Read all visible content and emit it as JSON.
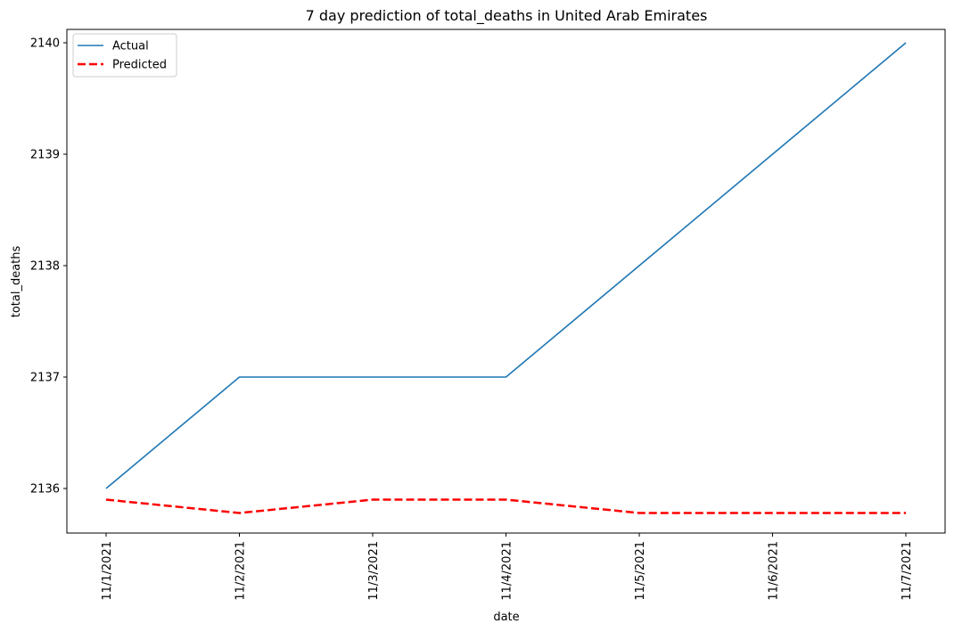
{
  "chart_data": {
    "type": "line",
    "title": "7 day prediction of total_deaths in United Arab Emirates",
    "xlabel": "date",
    "ylabel": "total_deaths",
    "categories": [
      "11/1/2021",
      "11/2/2021",
      "11/3/2021",
      "11/4/2021",
      "11/5/2021",
      "11/6/2021",
      "11/7/2021"
    ],
    "series": [
      {
        "name": "Actual",
        "color": "#1f77b4",
        "style": "solid",
        "values": [
          2136,
          2137,
          2137,
          2137,
          2138,
          2139,
          2140
        ]
      },
      {
        "name": "Predicted",
        "color": "#ff0000",
        "style": "dashed",
        "values": [
          2135.9,
          2135.78,
          2135.9,
          2135.9,
          2135.78,
          2135.78,
          2135.78
        ]
      }
    ],
    "ylim": [
      2135.6,
      2140.12
    ],
    "yticks": [
      2136,
      2137,
      2138,
      2139,
      2140
    ],
    "grid": false,
    "legend_position": "top-left"
  }
}
